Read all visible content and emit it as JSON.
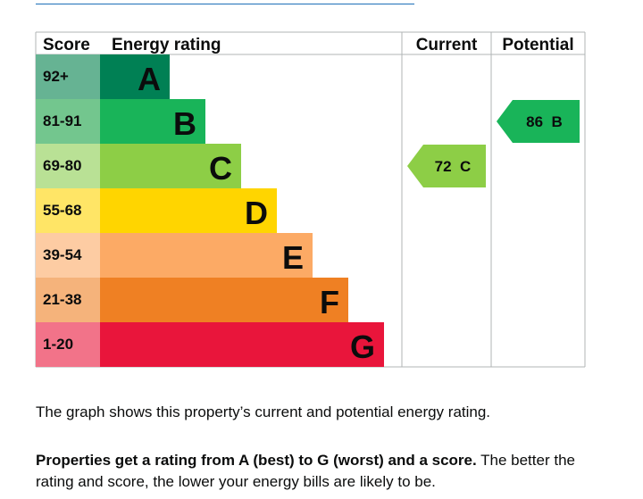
{
  "chart_data": {
    "type": "bar",
    "headers": {
      "score": "Score",
      "rating": "Energy rating",
      "current": "Current",
      "potential": "Potential"
    },
    "bands": [
      {
        "letter": "A",
        "score": "92+",
        "value": 1,
        "color": "#008054",
        "score_bg": "#66b393"
      },
      {
        "letter": "B",
        "score": "81-91",
        "value": 2,
        "color": "#19b459",
        "score_bg": "#73c68e"
      },
      {
        "letter": "C",
        "score": "69-80",
        "value": 3,
        "color": "#8dce46",
        "score_bg": "#b9e195"
      },
      {
        "letter": "D",
        "score": "55-68",
        "value": 4,
        "color": "#ffd500",
        "score_bg": "#ffe566"
      },
      {
        "letter": "E",
        "score": "39-54",
        "value": 5,
        "color": "#fcaa65",
        "score_bg": "#fdcca3"
      },
      {
        "letter": "F",
        "score": "21-38",
        "value": 6,
        "color": "#ef8023",
        "score_bg": "#f5b37b"
      },
      {
        "letter": "G",
        "score": "1-20",
        "value": 7,
        "color": "#e9153b",
        "score_bg": "#f27389"
      }
    ],
    "current": {
      "score": 72,
      "letter": "C",
      "label": "72  C",
      "color": "#8dce46"
    },
    "potential": {
      "score": 86,
      "letter": "B",
      "label": "86  B",
      "color": "#19b459"
    }
  },
  "text": {
    "caption": "The graph shows this property’s current and potential energy rating.",
    "explain_bold": "Properties get a rating from A (best) to G (worst) and a score.",
    "explain_rest": " The better the rating and score, the lower your energy bills are likely to be."
  },
  "colors": {
    "grid": "#b1b4b6",
    "link": "#1d70b8",
    "text": "#0b0c0c"
  }
}
